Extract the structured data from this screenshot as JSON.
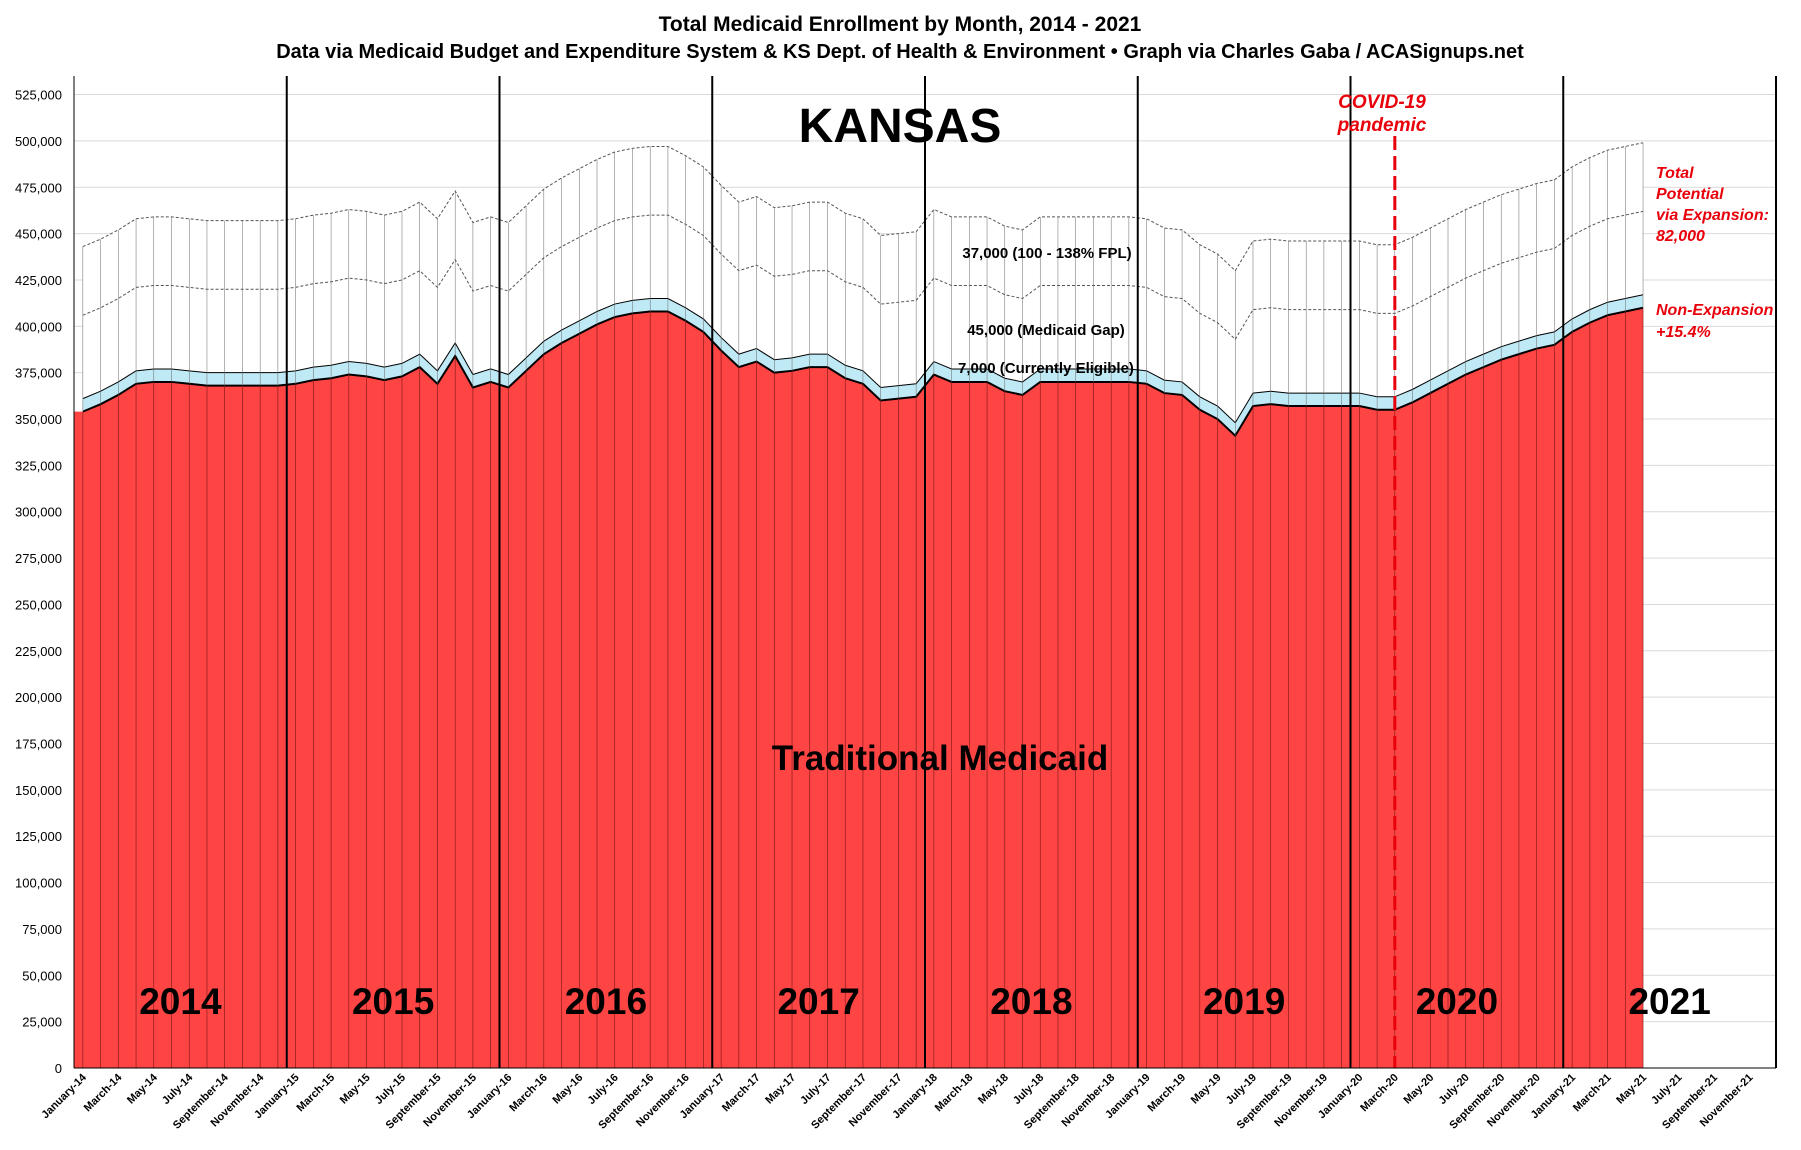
{
  "title": "Total Medicaid Enrollment by Month, 2014 - 2021",
  "subtitle": "Data via Medicaid Budget and Expenditure System & KS Dept. of Health & Environment  •  Graph via Charles Gaba / ACASignups.net",
  "state_label": "KANSAS",
  "colors": {
    "traditional": "#ff4444",
    "currently_eligible": "#bfe9f5",
    "annotation_red": "#e8000b",
    "grid": "#d9d9d9"
  },
  "chart_data": {
    "type": "area",
    "title": "Total Medicaid Enrollment by Month, 2014 - 2021",
    "y_tick_labels": [
      "0",
      "25,000",
      "50,000",
      "75,000",
      "100,000",
      "125,000",
      "150,000",
      "175,000",
      "200,000",
      "225,000",
      "250,000",
      "275,000",
      "300,000",
      "325,000",
      "350,000",
      "375,000",
      "400,000",
      "425,000",
      "450,000",
      "475,000",
      "500,000",
      "525,000"
    ],
    "x_tick_labels": [
      "January-14",
      "March-14",
      "May-14",
      "July-14",
      "September-14",
      "November-14",
      "January-15",
      "March-15",
      "May-15",
      "July-15",
      "September-15",
      "November-15",
      "January-16",
      "March-16",
      "May-16",
      "July-16",
      "September-16",
      "November-16",
      "January-17",
      "March-17",
      "May-17",
      "July-17",
      "September-17",
      "November-17",
      "January-18",
      "March-18",
      "May-18",
      "July-18",
      "September-18",
      "November-18",
      "January-19",
      "March-19",
      "May-19",
      "July-19",
      "September-19",
      "November-19",
      "January-20",
      "March-20",
      "May-20",
      "July-20",
      "September-20",
      "November-20",
      "January-21",
      "March-21",
      "May-21",
      "July-21",
      "September-21",
      "November-21"
    ],
    "ylim": [
      0,
      535000
    ],
    "grid": true,
    "x_start": "January 2014",
    "months_total": 96,
    "series": [
      {
        "name": "Traditional Medicaid",
        "values": [
          354000,
          358000,
          363000,
          369000,
          370000,
          370000,
          369000,
          368000,
          368000,
          368000,
          368000,
          368000,
          369000,
          371000,
          372000,
          374000,
          373000,
          371000,
          373000,
          378000,
          369000,
          384000,
          367000,
          370000,
          367000,
          376000,
          385000,
          391000,
          396000,
          401000,
          405000,
          407000,
          408000,
          408000,
          403000,
          397000,
          387000,
          378000,
          381000,
          375000,
          376000,
          378000,
          378000,
          372000,
          369000,
          360000,
          361000,
          362000,
          374000,
          370000,
          370000,
          370000,
          365000,
          363000,
          370000,
          370000,
          370000,
          370000,
          370000,
          370000,
          369000,
          364000,
          363000,
          355000,
          350000,
          341000,
          357000,
          358000,
          357000,
          357000,
          357000,
          357000,
          357000,
          355000,
          355000,
          359000,
          364000,
          369000,
          374000,
          378000,
          382000,
          385000,
          388000,
          390000,
          397000,
          402000,
          406000,
          408000,
          410000
        ]
      },
      {
        "name": "7,000 (Currently Eligible)",
        "values": [
          7000,
          7000,
          7000,
          7000,
          7000,
          7000,
          7000,
          7000,
          7000,
          7000,
          7000,
          7000,
          7000,
          7000,
          7000,
          7000,
          7000,
          7000,
          7000,
          7000,
          7000,
          7000,
          7000,
          7000,
          7000,
          7000,
          7000,
          7000,
          7000,
          7000,
          7000,
          7000,
          7000,
          7000,
          7000,
          7000,
          7000,
          7000,
          7000,
          7000,
          7000,
          7000,
          7000,
          7000,
          7000,
          7000,
          7000,
          7000,
          7000,
          7000,
          7000,
          7000,
          7000,
          7000,
          7000,
          7000,
          7000,
          7000,
          7000,
          7000,
          7000,
          7000,
          7000,
          7000,
          7000,
          7000,
          7000,
          7000,
          7000,
          7000,
          7000,
          7000,
          7000,
          7000,
          7000,
          7000,
          7000,
          7000,
          7000,
          7000,
          7000,
          7000,
          7000,
          7000,
          7000,
          7000,
          7000,
          7000,
          7000
        ]
      },
      {
        "name": "45,000 (Medicaid Gap)",
        "values": [
          45000,
          45000,
          45000,
          45000,
          45000,
          45000,
          45000,
          45000,
          45000,
          45000,
          45000,
          45000,
          45000,
          45000,
          45000,
          45000,
          45000,
          45000,
          45000,
          45000,
          45000,
          45000,
          45000,
          45000,
          45000,
          45000,
          45000,
          45000,
          45000,
          45000,
          45000,
          45000,
          45000,
          45000,
          45000,
          45000,
          45000,
          45000,
          45000,
          45000,
          45000,
          45000,
          45000,
          45000,
          45000,
          45000,
          45000,
          45000,
          45000,
          45000,
          45000,
          45000,
          45000,
          45000,
          45000,
          45000,
          45000,
          45000,
          45000,
          45000,
          45000,
          45000,
          45000,
          45000,
          45000,
          45000,
          45000,
          45000,
          45000,
          45000,
          45000,
          45000,
          45000,
          45000,
          45000,
          45000,
          45000,
          45000,
          45000,
          45000,
          45000,
          45000,
          45000,
          45000,
          45000,
          45000,
          45000,
          45000,
          45000
        ]
      },
      {
        "name": "37,000 (100 - 138% FPL)",
        "values": [
          37000,
          37000,
          37000,
          37000,
          37000,
          37000,
          37000,
          37000,
          37000,
          37000,
          37000,
          37000,
          37000,
          37000,
          37000,
          37000,
          37000,
          37000,
          37000,
          37000,
          37000,
          37000,
          37000,
          37000,
          37000,
          37000,
          37000,
          37000,
          37000,
          37000,
          37000,
          37000,
          37000,
          37000,
          37000,
          37000,
          37000,
          37000,
          37000,
          37000,
          37000,
          37000,
          37000,
          37000,
          37000,
          37000,
          37000,
          37000,
          37000,
          37000,
          37000,
          37000,
          37000,
          37000,
          37000,
          37000,
          37000,
          37000,
          37000,
          37000,
          37000,
          37000,
          37000,
          37000,
          37000,
          37000,
          37000,
          37000,
          37000,
          37000,
          37000,
          37000,
          37000,
          37000,
          37000,
          37000,
          37000,
          37000,
          37000,
          37000,
          37000,
          37000,
          37000,
          37000,
          37000,
          37000,
          37000,
          37000,
          37000
        ]
      }
    ],
    "year_labels": [
      {
        "year": "2014",
        "start_month": 0
      },
      {
        "year": "2015",
        "start_month": 12
      },
      {
        "year": "2016",
        "start_month": 24
      },
      {
        "year": "2017",
        "start_month": 36
      },
      {
        "year": "2018",
        "start_month": 48
      },
      {
        "year": "2019",
        "start_month": 60
      },
      {
        "year": "2020",
        "start_month": 72
      },
      {
        "year": "2021",
        "start_month": 84
      }
    ],
    "covid_month": 74.5
  },
  "annotations": {
    "traditional_label": "Traditional Medicaid",
    "fpl_label": "37,000 (100 - 138% FPL)",
    "gap_label": "45,000 (Medicaid Gap)",
    "eligible_label": "7,000 (Currently Eligible)",
    "covid_line1": "COVID-19",
    "covid_line2": "pandemic",
    "total_line1": "Total",
    "total_line2": "Potential",
    "total_line3": "via Expansion:",
    "total_line4": "82,000",
    "nonexp_line1": "Non-Expansion",
    "nonexp_line2": "+15.4%"
  }
}
